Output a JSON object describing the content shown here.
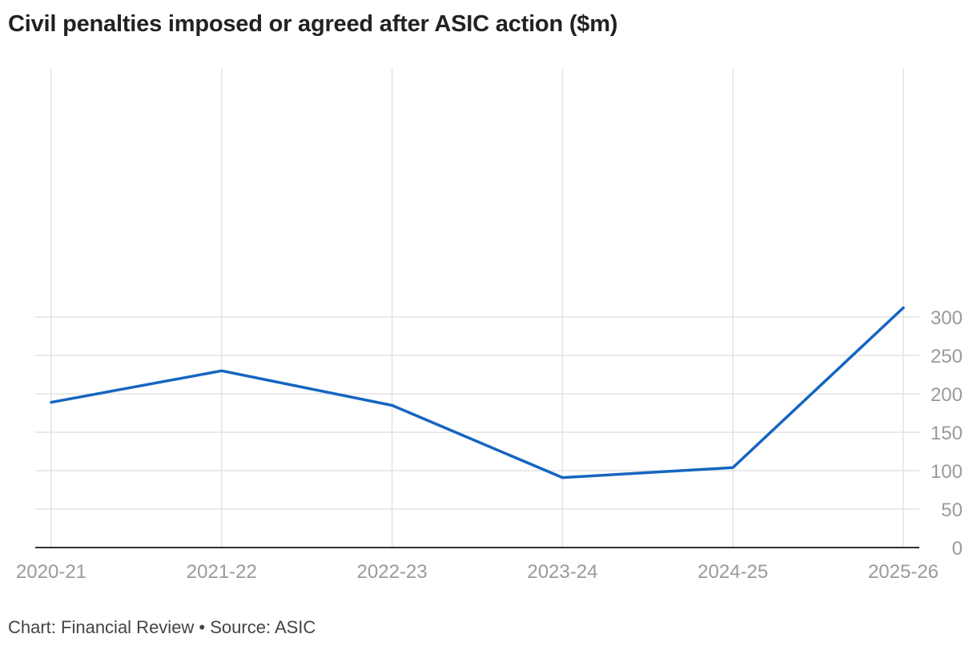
{
  "title": "Civil penalties imposed or agreed after ASIC action ($m)",
  "footer": "Chart: Financial Review • Source: ASIC",
  "colors": {
    "line": "#1565c0"
  },
  "chart_data": {
    "type": "line",
    "title": "Civil penalties imposed or agreed after ASIC action ($m)",
    "categories": [
      "2020-21",
      "2021-22",
      "2022-23",
      "2023-24",
      "2024-25",
      "2025-26"
    ],
    "series": [
      {
        "values": [
          189,
          230,
          185,
          91,
          104,
          312
        ]
      }
    ],
    "ylim": [
      0,
      300
    ],
    "yticks": [
      0,
      50,
      100,
      150,
      200,
      250,
      300
    ],
    "y_axis_side": "right",
    "grid": true,
    "legend": "none"
  }
}
